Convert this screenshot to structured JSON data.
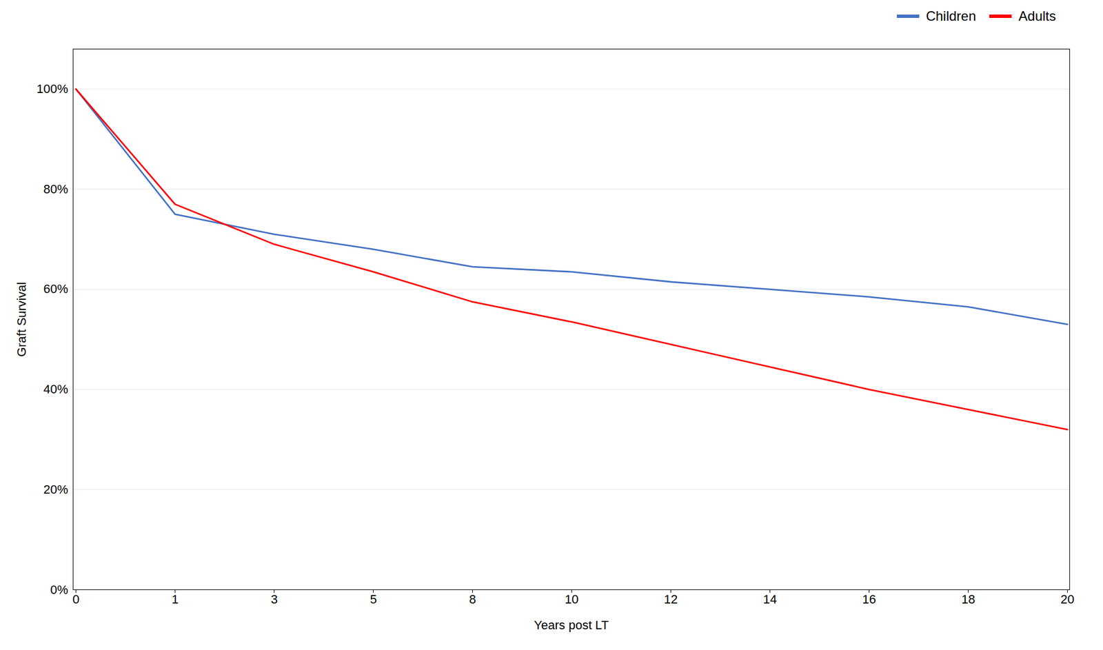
{
  "chart_data": {
    "type": "line",
    "xlabel": "Years post LT",
    "ylabel": "Graft Survival",
    "categories": [
      "0",
      "1",
      "3",
      "5",
      "8",
      "10",
      "12",
      "14",
      "16",
      "18",
      "20"
    ],
    "series": [
      {
        "name": "Children",
        "color": "#4472C4",
        "values": [
          1.0,
          0.75,
          0.71,
          0.68,
          0.645,
          0.635,
          0.615,
          0.6,
          0.585,
          0.565,
          0.53
        ]
      },
      {
        "name": "Adults",
        "color": "#FF0000",
        "values": [
          1.0,
          0.77,
          0.69,
          0.635,
          0.575,
          0.535,
          0.49,
          0.445,
          0.4,
          0.36,
          0.32
        ]
      }
    ],
    "ylim": [
      0.0,
      1.08
    ],
    "yticks": [
      {
        "value": 0.0,
        "label": "0%"
      },
      {
        "value": 0.2,
        "label": "20%"
      },
      {
        "value": 0.4,
        "label": "40%"
      },
      {
        "value": 0.6,
        "label": "60%"
      },
      {
        "value": 0.8,
        "label": "80%"
      },
      {
        "value": 1.0,
        "label": "100%"
      }
    ],
    "grid": true,
    "legend": "upper right"
  }
}
